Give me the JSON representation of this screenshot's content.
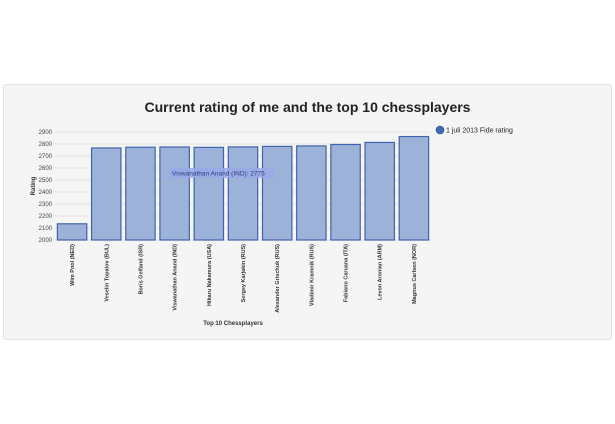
{
  "chart_data": {
    "type": "bar",
    "title": "Current rating of me and the top 10 chessplayers",
    "xlabel": "Top 10 Chessplayers",
    "ylabel": "Rating",
    "ylim": [
      2000,
      2900
    ],
    "yticks": [
      2000,
      2100,
      2200,
      2300,
      2400,
      2500,
      2600,
      2700,
      2800,
      2900
    ],
    "grid": true,
    "legend_position": "top-right",
    "categories": [
      "Wim Pool (NED)",
      "Veselin Topalov (BUL)",
      "Boris Gelfand (ISR)",
      "Viswanathan Anand (IND)",
      "Hikaru Nakamura (USA)",
      "Sergey Karjakin (RUS)",
      "Alexander Grischuk (RUS)",
      "Vladimir Kramnik (RUS)",
      "Fabiano Caruana (ITA)",
      "Levon Aronian (ARM)",
      "Magnus Carlsen (NOR)"
    ],
    "series": [
      {
        "name": "1 juli 2013 Fide rating",
        "values": [
          2135,
          2767,
          2773,
          2775,
          2772,
          2776,
          2780,
          2784,
          2796,
          2813,
          2862
        ]
      }
    ],
    "tooltip": "Viswanathan Anand (IND): 2775",
    "colors": {
      "bar_fill": "#9db2d8",
      "bar_stroke": "#3f63ad",
      "grid": "#dcdcdc",
      "legend_dot": "#3f6ab0",
      "tooltip_fill": "#9aa8e6"
    }
  }
}
